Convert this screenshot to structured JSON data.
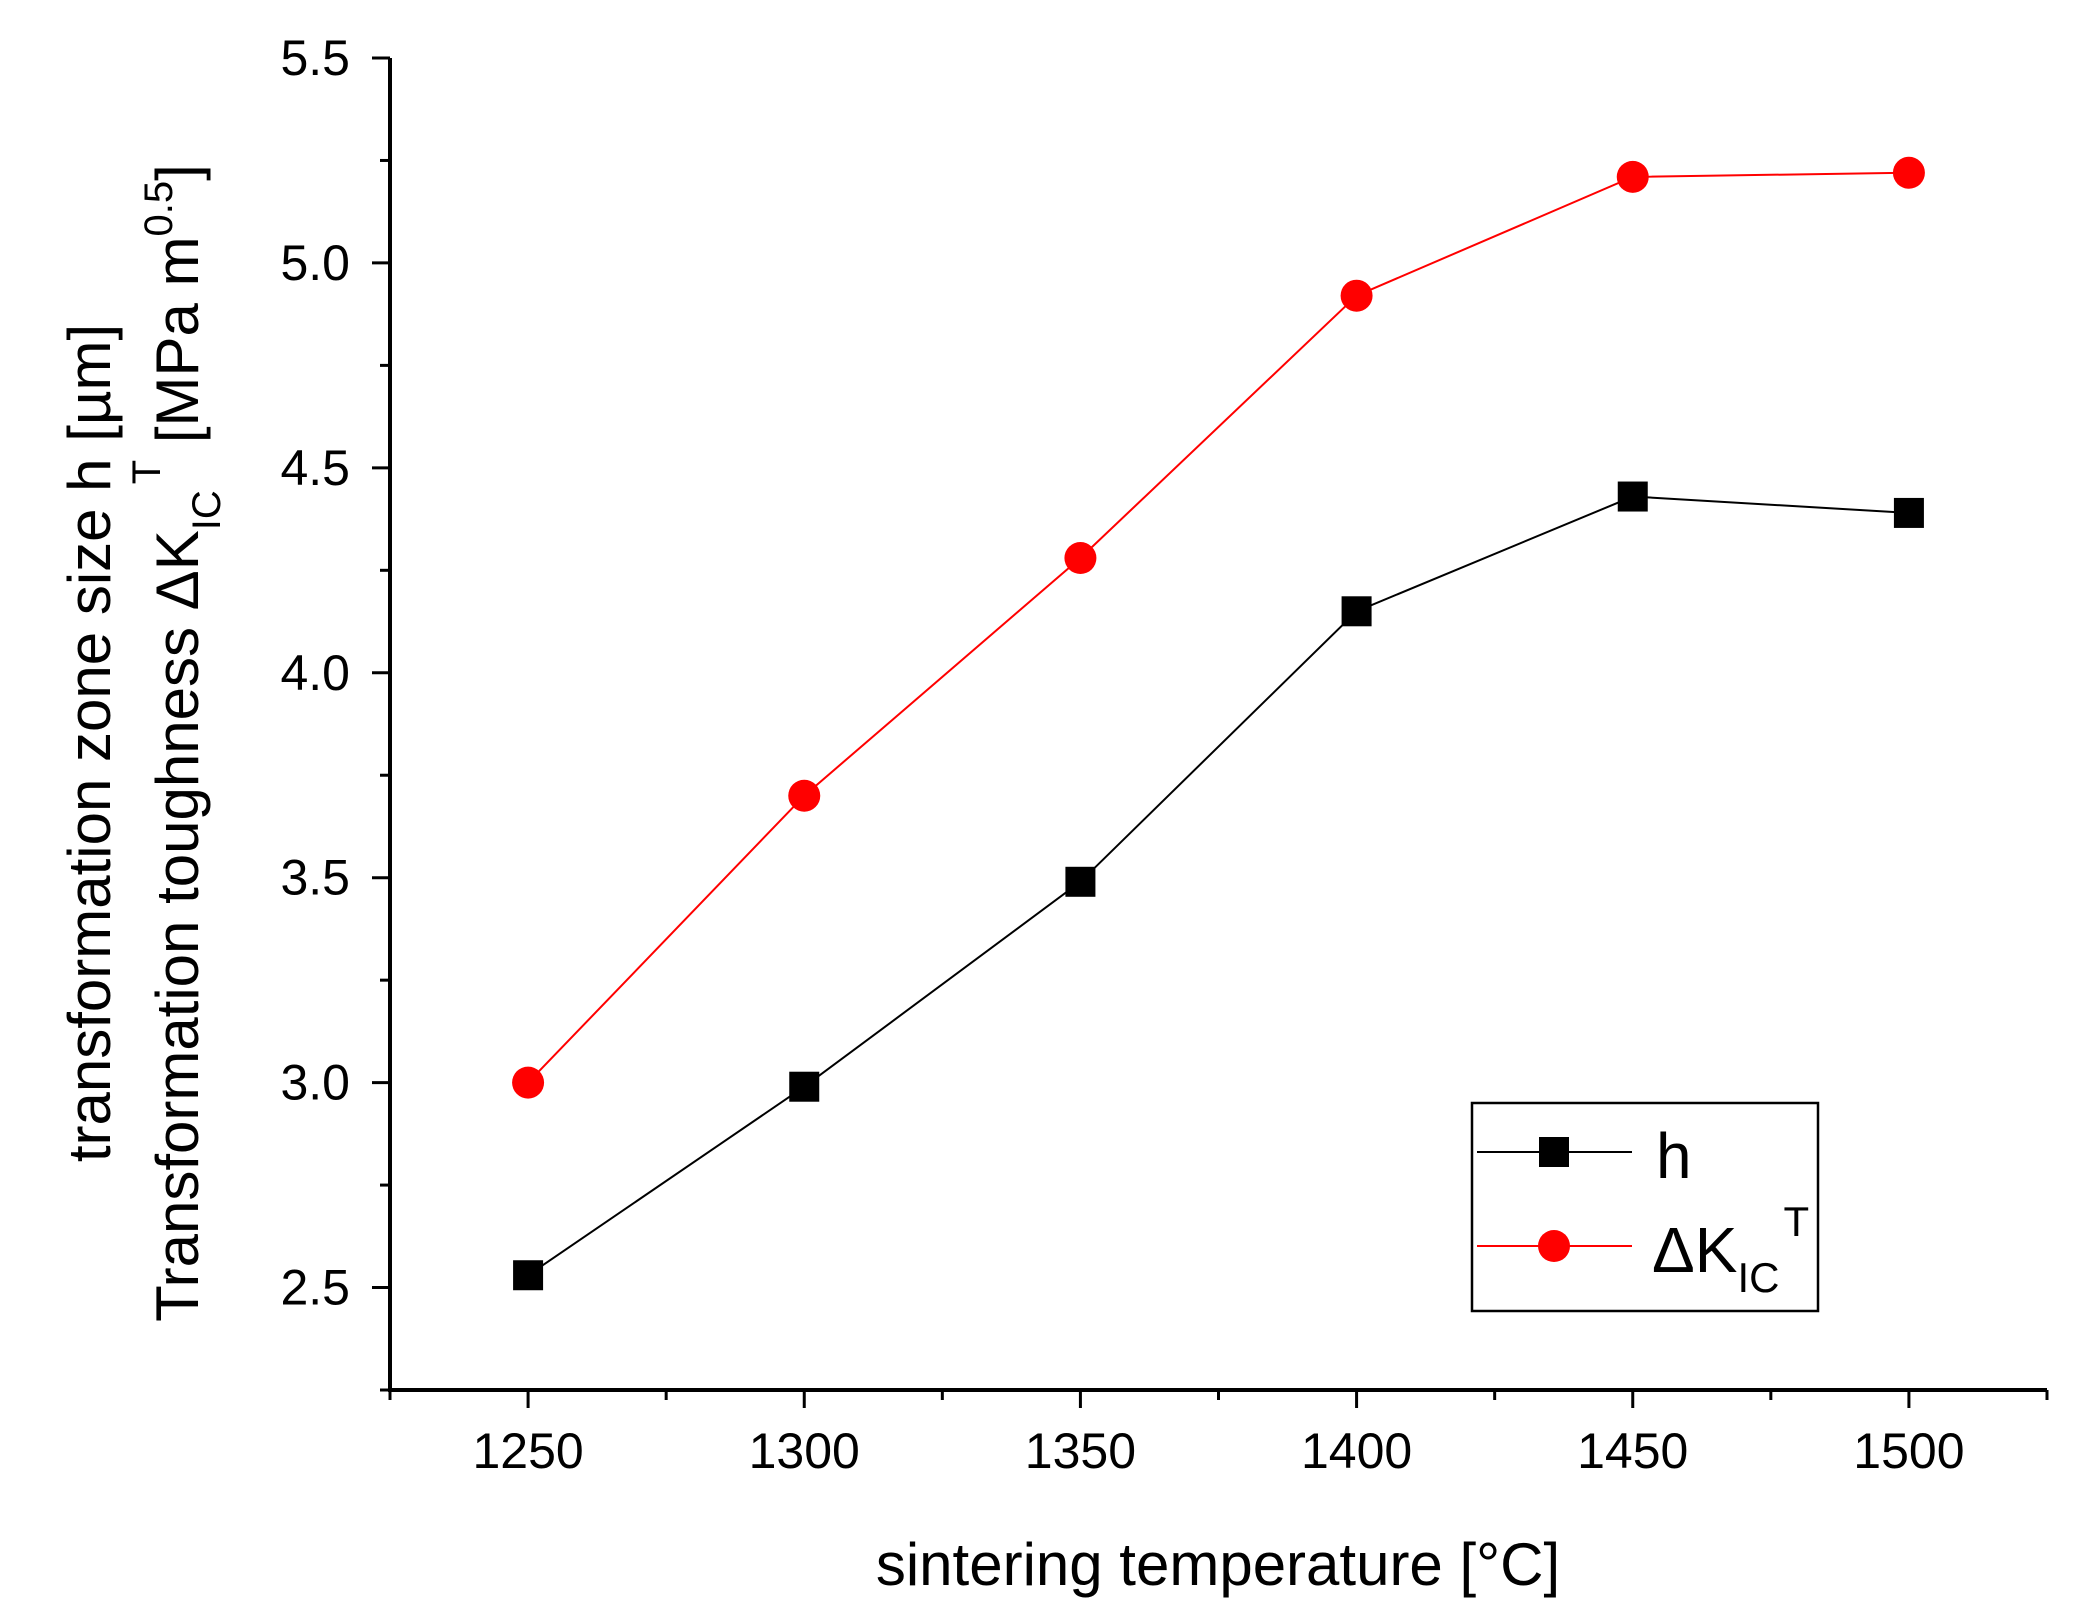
{
  "chart_data": {
    "type": "line",
    "title": "",
    "xlabel": "sintering temperature [°C]",
    "ylabel_line1": "transformation zone size h [µm]",
    "ylabel_line2": {
      "prefix": "Transformation toughness ΔK",
      "sub": "IC",
      "sup": "T",
      "suffix_start": " [MPa m",
      "suffix_sup": "0.5",
      "suffix_end": "]"
    },
    "x": [
      1250,
      1300,
      1350,
      1400,
      1450,
      1500
    ],
    "xlim": [
      1225,
      1525
    ],
    "ylim": [
      2.25,
      5.5
    ],
    "x_ticks": [
      1250,
      1300,
      1350,
      1400,
      1450,
      1500
    ],
    "x_tick_labels": [
      "1250",
      "1300",
      "1350",
      "1400",
      "1450",
      "1500"
    ],
    "y_ticks": [
      2.5,
      3.0,
      3.5,
      4.0,
      4.5,
      5.0,
      5.5
    ],
    "y_tick_labels": [
      "2.5",
      "3.0",
      "3.5",
      "4.0",
      "4.5",
      "5.0",
      "5.5"
    ],
    "grid": false,
    "legend_position": "bottom-right",
    "series": [
      {
        "name": "h",
        "marker": "square",
        "color": "#000000",
        "values": [
          2.53,
          2.99,
          3.49,
          4.15,
          4.43,
          4.39
        ]
      },
      {
        "name": "ΔK_IC^T",
        "label_main": "ΔK",
        "label_sub": "IC",
        "label_sup": "T",
        "marker": "circle",
        "color": "#ff0000",
        "values": [
          3.0,
          3.7,
          4.28,
          4.92,
          5.21,
          5.22
        ]
      }
    ]
  }
}
